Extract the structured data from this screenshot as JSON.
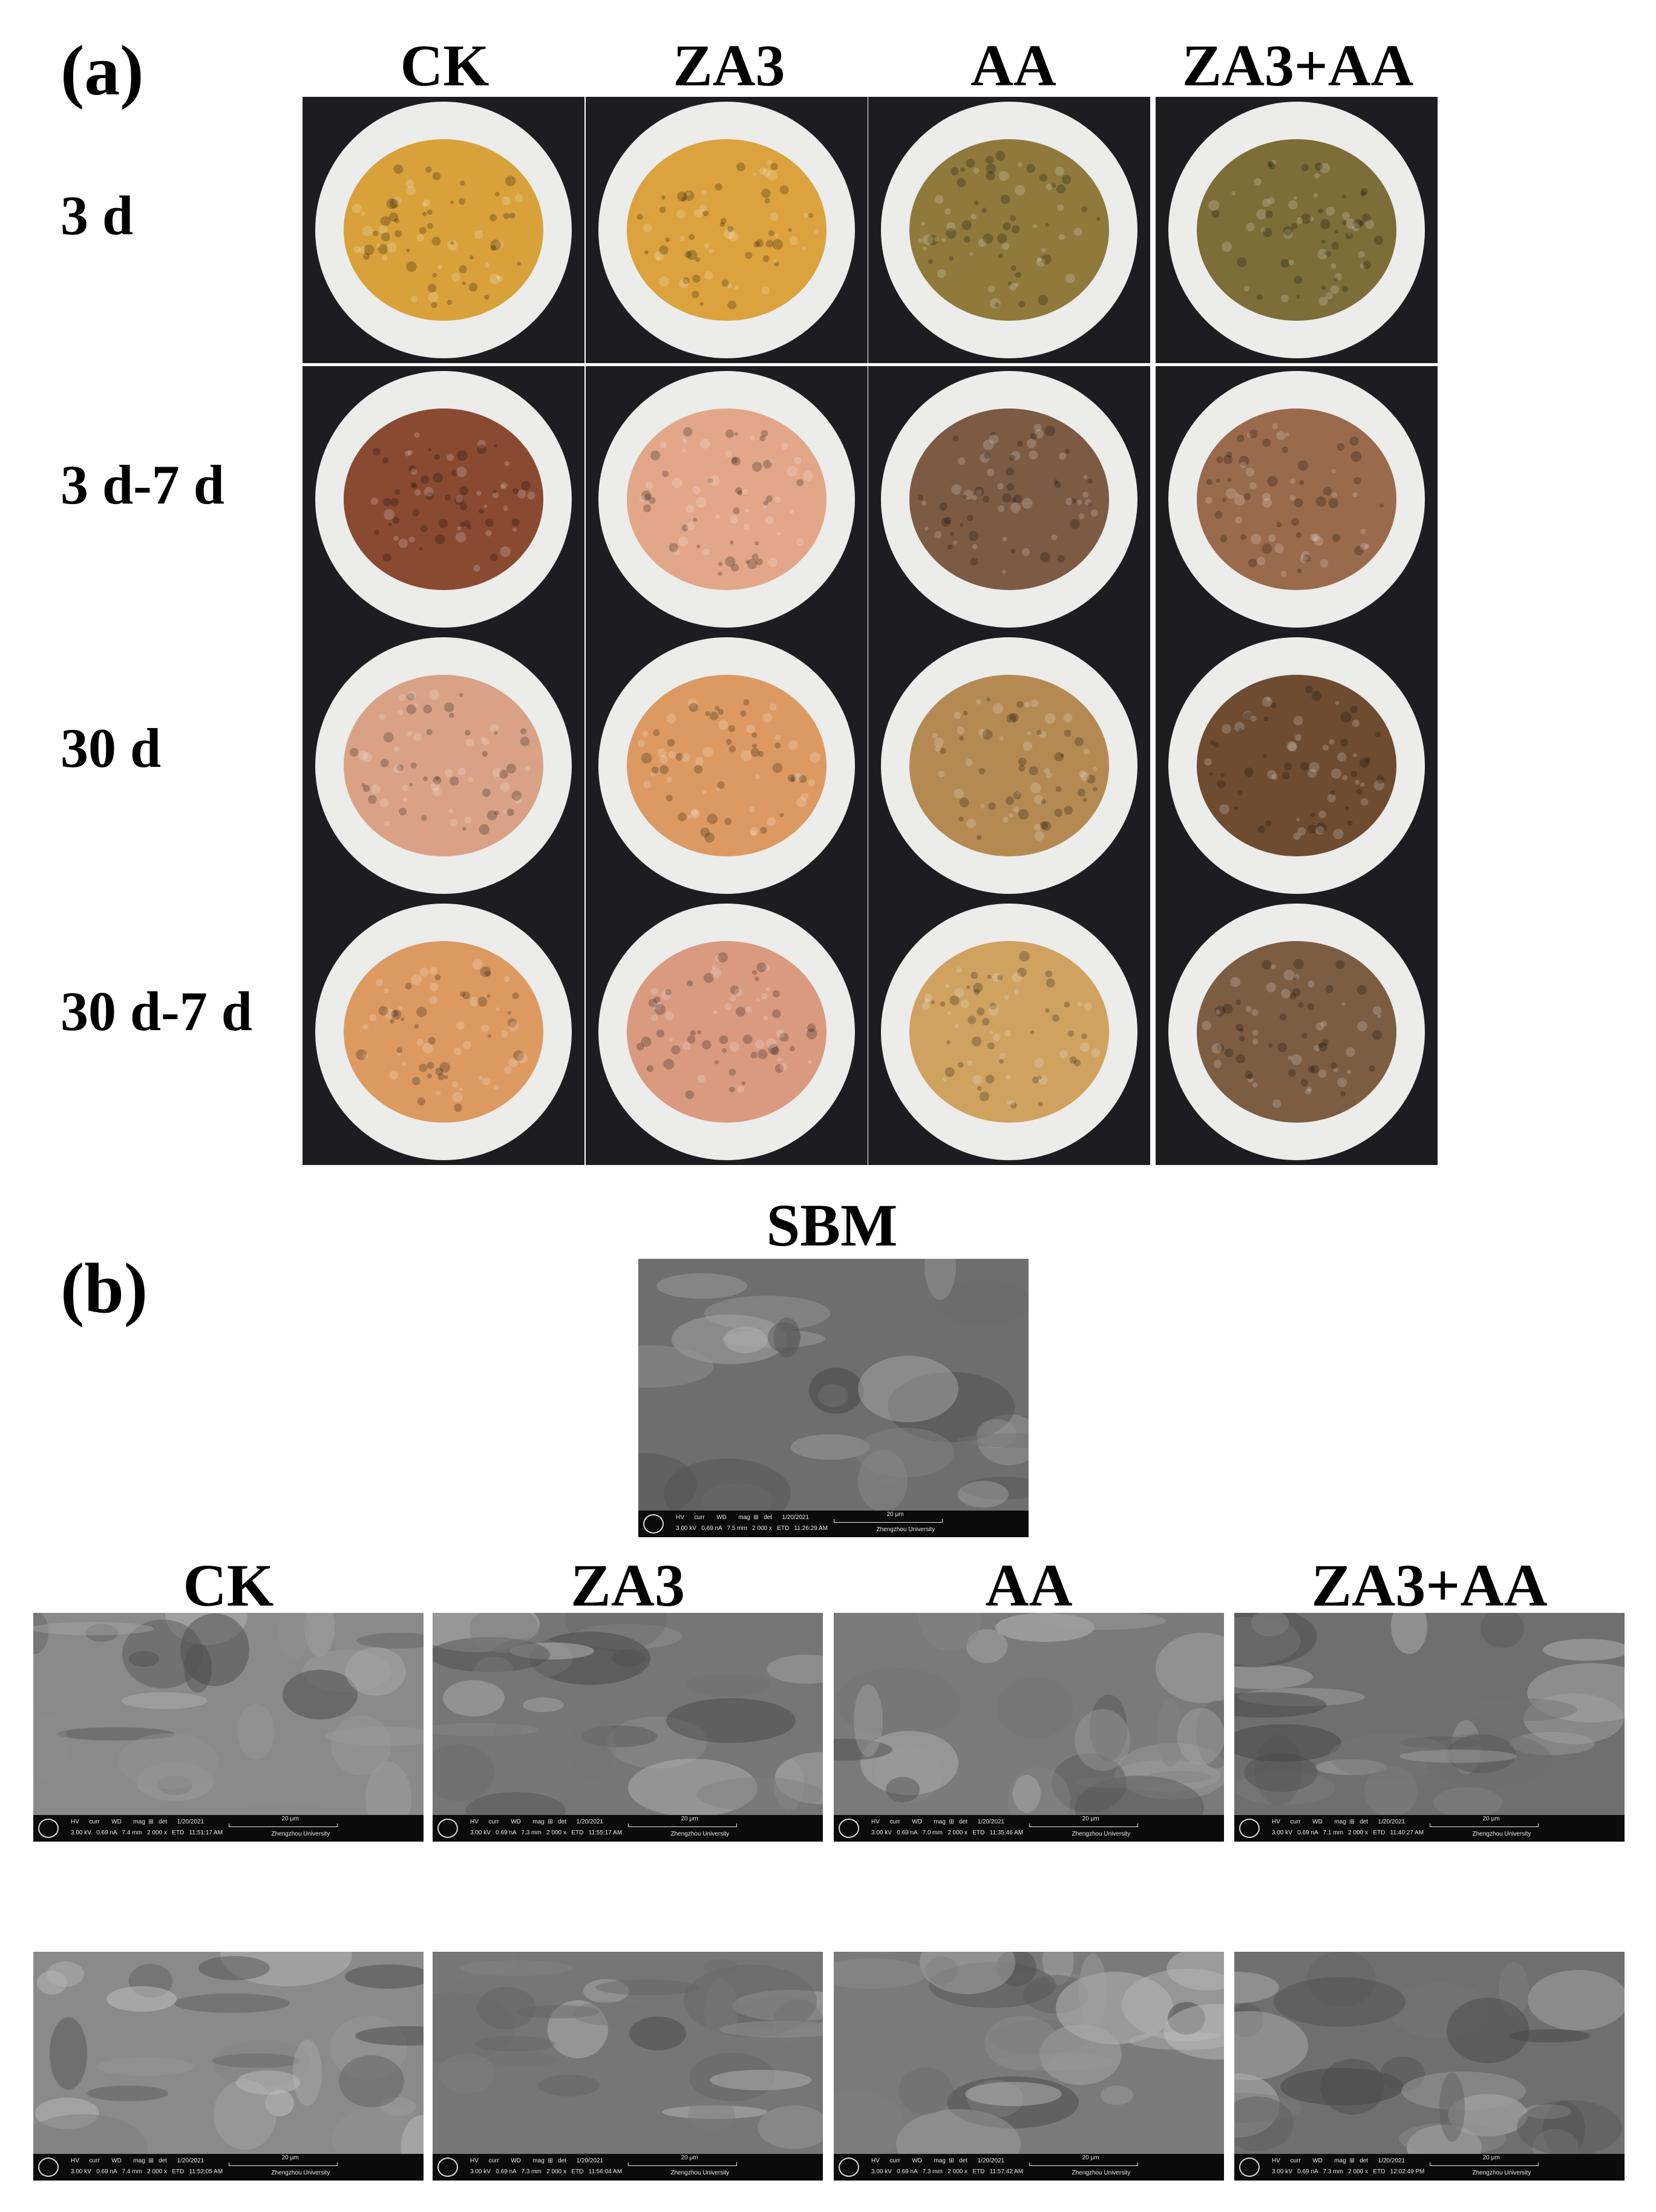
{
  "panel_a": {
    "label": "(a)",
    "columns": [
      "CK",
      "ZA3",
      "AA",
      "ZA3+AA"
    ],
    "rows": [
      "3 d",
      "3 d-7 d",
      "30 d",
      "30 d-7 d"
    ],
    "colors": {
      "row1": [
        "#d9a13a",
        "#dba23e",
        "#8f7a3c",
        "#7d6d38"
      ],
      "row2": [
        "#8a4a32",
        "#e2a688",
        "#7d5a44",
        "#9a6a4c"
      ],
      "row3": [
        "#d9a286",
        "#dc9a62",
        "#b58a52",
        "#6f4c30"
      ],
      "row4": [
        "#dd9a60",
        "#d99a80",
        "#cfa260",
        "#7d5d42"
      ]
    }
  },
  "panel_b": {
    "label": "(b)",
    "sbm_title": "SBM",
    "columns": [
      "CK",
      "ZA3",
      "AA",
      "ZA3+AA"
    ],
    "scale_label": "20 μm",
    "university": "Zhengzhou University",
    "header_row": "HV      curr       WD       mag  ⊞   det      1/20/2021",
    "sbm_info": "3.00 kV   0.69 nA   7.5 mm   2 000 x   ETD   11:26:29 AM",
    "info_rows": [
      [
        "3.00 kV   0.69 nA   7.4 mm   2 000 x   ETD   11:51:17 AM",
        "3.00 kV   0.69 nA   7.3 mm   2 000 x   ETD   11:55:17 AM",
        "3.00 kV   0.69 nA   7.0 mm   2 000 x   ETD   11:35:46 AM",
        "3.00 kV   0.69 nA   7.1 mm   2 000 x   ETD   11:40:27 AM"
      ],
      [
        "3.00 kV   0.69 nA   7.4 mm   2 000 x   ETD   11:52:05 AM",
        "3.00 kV   0.69 nA   7.3 mm   2 000 x   ETD   11:56:04 AM",
        "3.00 kV   0.69 nA   7.3 mm   2 000 x   ETD   11:57:42 AM",
        "3.00 kV   0.69 nA   7.3 mm   2 000 x   ETD   12:02:49 PM"
      ]
    ]
  }
}
